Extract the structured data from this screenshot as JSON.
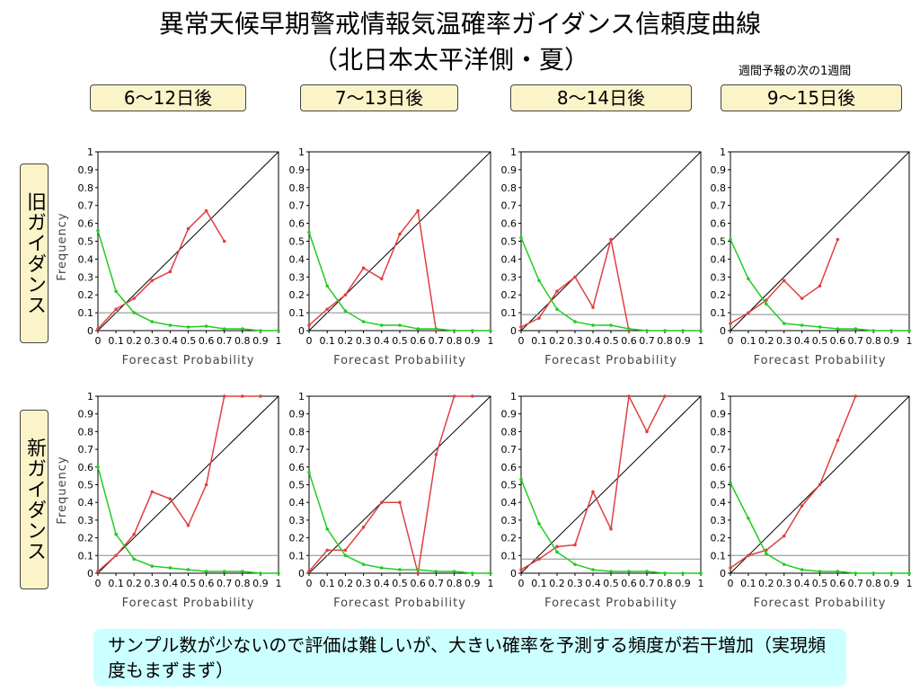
{
  "title_line1": "異常天候早期警戒情報気温確率ガイダンス信頼度曲線",
  "title_line2": "（北日本太平洋側・夏）",
  "note": "週間予報の次の1週間",
  "periods": [
    "6～12日後",
    "7～13日後",
    "8～14日後",
    "9～15日後"
  ],
  "rows": [
    "旧ガイダンス",
    "新ガイダンス"
  ],
  "comment": "サンプル数が少ないので評価は難しいが、大きい確率を予測する頻度が若干増加（実現頻度もまずまず）",
  "colors": {
    "reliability": "#e04040",
    "frequency": "#22cc22",
    "diagonal": "#000000",
    "climatology": "#888888",
    "label_bg": "#fcf4c9",
    "comment_bg": "#ccffff"
  },
  "chart_data": [
    {
      "row": "旧ガイダンス",
      "period": "6～12日後",
      "type": "line",
      "xlabel": "Forecast Probability",
      "ylabel": "Frequency",
      "xlim": [
        0,
        1
      ],
      "ylim": [
        0,
        1
      ],
      "climatology": 0.1,
      "series": [
        {
          "name": "",
          "x": [
            0,
            0.1,
            0.2,
            0.3,
            0.4,
            0.5,
            0.6,
            0.7
          ],
          "y": [
            0.01,
            0.12,
            0.18,
            0.28,
            0.33,
            0.57,
            0.67,
            0.5
          ]
        },
        {
          "name": "",
          "x": [
            0,
            0.1,
            0.2,
            0.3,
            0.4,
            0.5,
            0.6,
            0.7,
            0.8,
            0.9,
            1
          ],
          "y": [
            0.56,
            0.22,
            0.1,
            0.05,
            0.03,
            0.02,
            0.025,
            0.01,
            0.01,
            0.0,
            0.0
          ]
        }
      ]
    },
    {
      "row": "旧ガイダンス",
      "period": "7～13日後",
      "type": "line",
      "xlabel": "Forecast Probability",
      "ylabel": "Frequency",
      "xlim": [
        0,
        1
      ],
      "ylim": [
        0,
        1
      ],
      "climatology": 0.1,
      "series": [
        {
          "name": "",
          "x": [
            0,
            0.1,
            0.2,
            0.3,
            0.4,
            0.5,
            0.6,
            0.7
          ],
          "y": [
            0.03,
            0.12,
            0.2,
            0.35,
            0.29,
            0.54,
            0.67,
            0.0
          ]
        },
        {
          "name": "",
          "x": [
            0,
            0.1,
            0.2,
            0.3,
            0.4,
            0.5,
            0.6,
            0.7,
            0.8,
            0.9,
            1
          ],
          "y": [
            0.55,
            0.25,
            0.11,
            0.05,
            0.03,
            0.03,
            0.01,
            0.01,
            0.0,
            0.0,
            0.0
          ]
        }
      ]
    },
    {
      "row": "旧ガイダンス",
      "period": "8～14日後",
      "type": "line",
      "xlabel": "Forecast Probability",
      "ylabel": "Frequency",
      "xlim": [
        0,
        1
      ],
      "ylim": [
        0,
        1
      ],
      "climatology": 0.09,
      "series": [
        {
          "name": "",
          "x": [
            0,
            0.1,
            0.2,
            0.3,
            0.4,
            0.5,
            0.6
          ],
          "y": [
            0.02,
            0.07,
            0.22,
            0.3,
            0.13,
            0.51,
            0.0
          ]
        },
        {
          "name": "",
          "x": [
            0,
            0.1,
            0.2,
            0.3,
            0.4,
            0.5,
            0.6,
            0.7,
            0.8,
            0.9,
            1
          ],
          "y": [
            0.52,
            0.28,
            0.12,
            0.05,
            0.03,
            0.03,
            0.01,
            0.0,
            0.0,
            0.0,
            0.0
          ]
        }
      ]
    },
    {
      "row": "旧ガイダンス",
      "period": "9～15日後",
      "type": "line",
      "xlabel": "Forecast Probability",
      "ylabel": "Frequency",
      "xlim": [
        0,
        1
      ],
      "ylim": [
        0,
        1
      ],
      "climatology": 0.09,
      "series": [
        {
          "name": "",
          "x": [
            0,
            0.1,
            0.2,
            0.3,
            0.4,
            0.5,
            0.6
          ],
          "y": [
            0.04,
            0.1,
            0.17,
            0.28,
            0.18,
            0.25,
            0.51
          ]
        },
        {
          "name": "",
          "x": [
            0,
            0.1,
            0.2,
            0.3,
            0.4,
            0.5,
            0.6,
            0.7,
            0.8,
            0.9,
            1
          ],
          "y": [
            0.51,
            0.29,
            0.15,
            0.04,
            0.03,
            0.02,
            0.01,
            0.01,
            0.0,
            0.0,
            0.0
          ]
        }
      ]
    },
    {
      "row": "新ガイダンス",
      "period": "6～12日後",
      "type": "line",
      "xlabel": "Forecast Probability",
      "ylabel": "Frequency",
      "xlim": [
        0,
        1
      ],
      "ylim": [
        0,
        1
      ],
      "climatology": 0.1,
      "series": [
        {
          "name": "",
          "x": [
            0,
            0.1,
            0.2,
            0.3,
            0.4,
            0.5,
            0.6,
            0.7,
            0.8,
            0.9
          ],
          "y": [
            0.01,
            0.1,
            0.22,
            0.46,
            0.42,
            0.27,
            0.5,
            1.0,
            1.0,
            1.0
          ]
        },
        {
          "name": "",
          "x": [
            0,
            0.1,
            0.2,
            0.3,
            0.4,
            0.5,
            0.6,
            0.7,
            0.8,
            0.9,
            1
          ],
          "y": [
            0.6,
            0.22,
            0.08,
            0.04,
            0.03,
            0.02,
            0.01,
            0.01,
            0.01,
            0.0,
            0.0
          ]
        }
      ]
    },
    {
      "row": "新ガイダンス",
      "period": "7～13日後",
      "type": "line",
      "xlabel": "Forecast Probability",
      "ylabel": "Frequency",
      "xlim": [
        0,
        1
      ],
      "ylim": [
        0,
        1
      ],
      "climatology": 0.1,
      "series": [
        {
          "name": "",
          "x": [
            0,
            0.1,
            0.2,
            0.3,
            0.4,
            0.5,
            0.6,
            0.7,
            0.8,
            0.9
          ],
          "y": [
            0.01,
            0.13,
            0.13,
            0.26,
            0.4,
            0.4,
            0.0,
            0.67,
            1.0,
            1.0
          ]
        },
        {
          "name": "",
          "x": [
            0,
            0.1,
            0.2,
            0.3,
            0.4,
            0.5,
            0.6,
            0.7,
            0.8,
            0.9,
            1
          ],
          "y": [
            0.57,
            0.25,
            0.1,
            0.05,
            0.03,
            0.02,
            0.02,
            0.01,
            0.01,
            0.0,
            0.0
          ]
        }
      ]
    },
    {
      "row": "新ガイダンス",
      "period": "8～14日後",
      "type": "line",
      "xlabel": "Forecast Probability",
      "ylabel": "Frequency",
      "xlim": [
        0,
        1
      ],
      "ylim": [
        0,
        1
      ],
      "climatology": 0.08,
      "series": [
        {
          "name": "",
          "x": [
            0,
            0.1,
            0.2,
            0.3,
            0.4,
            0.5,
            0.6,
            0.7,
            0.8
          ],
          "y": [
            0.02,
            0.08,
            0.15,
            0.16,
            0.46,
            0.25,
            1.0,
            0.8,
            1.0
          ]
        },
        {
          "name": "",
          "x": [
            0,
            0.1,
            0.2,
            0.3,
            0.4,
            0.5,
            0.6,
            0.7,
            0.8,
            0.9,
            1
          ],
          "y": [
            0.53,
            0.28,
            0.12,
            0.05,
            0.02,
            0.01,
            0.01,
            0.01,
            0.0,
            0.0,
            0.0
          ]
        }
      ]
    },
    {
      "row": "新ガイダンス",
      "period": "9～15日後",
      "type": "line",
      "xlabel": "Forecast Probability",
      "ylabel": "Frequency",
      "xlim": [
        0,
        1
      ],
      "ylim": [
        0,
        1
      ],
      "climatology": 0.1,
      "series": [
        {
          "name": "",
          "x": [
            0,
            0.1,
            0.2,
            0.3,
            0.4,
            0.5,
            0.6,
            0.7
          ],
          "y": [
            0.03,
            0.1,
            0.13,
            0.21,
            0.38,
            0.5,
            0.75,
            1.0
          ]
        },
        {
          "name": "",
          "x": [
            0,
            0.1,
            0.2,
            0.3,
            0.4,
            0.5,
            0.6,
            0.7,
            0.8,
            0.9,
            1
          ],
          "y": [
            0.51,
            0.31,
            0.11,
            0.05,
            0.02,
            0.01,
            0.01,
            0.0,
            0.0,
            0.0,
            0.0
          ]
        }
      ]
    }
  ]
}
